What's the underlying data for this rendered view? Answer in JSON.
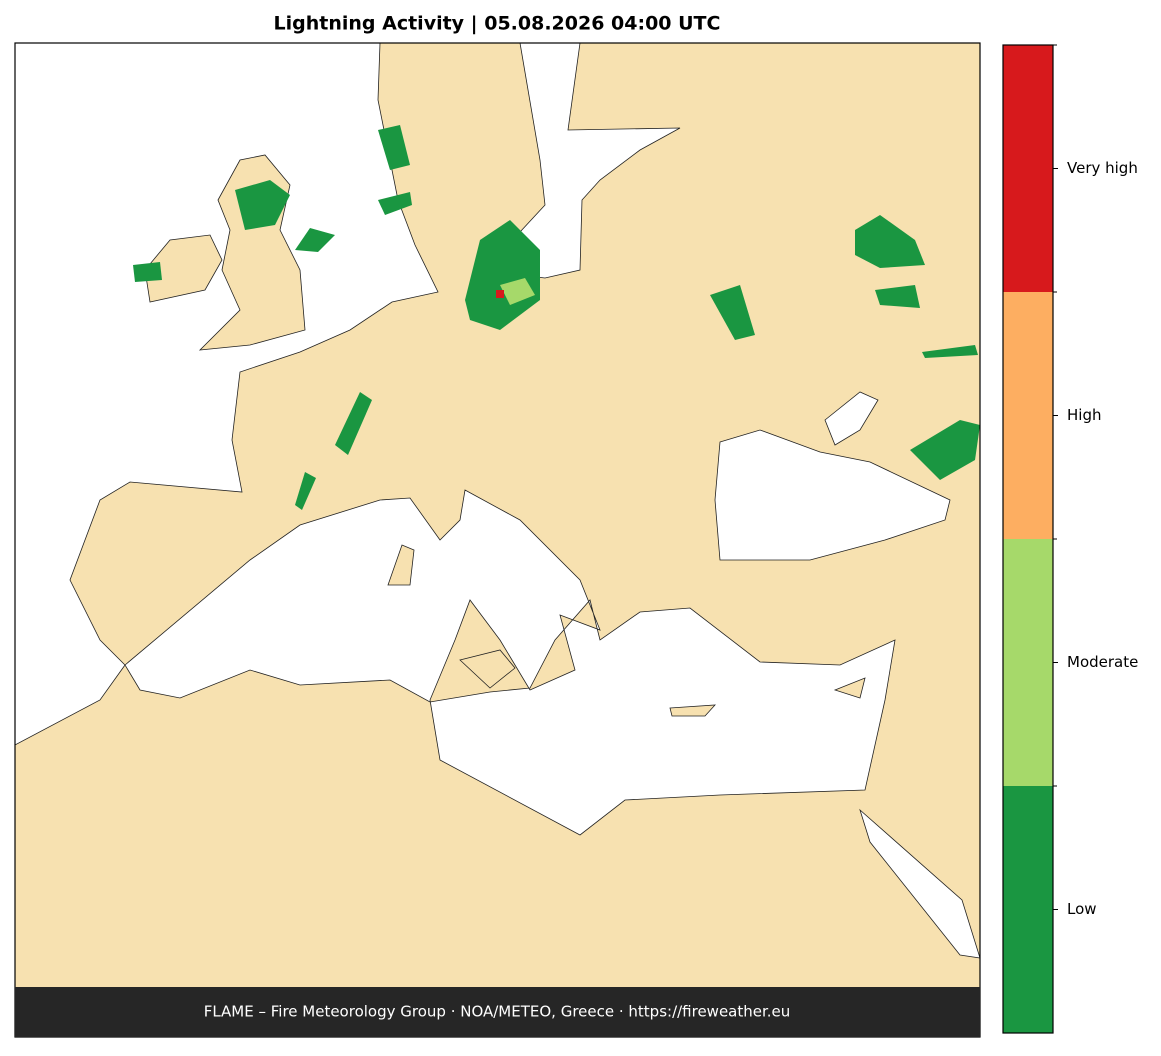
{
  "header": {
    "title": "Lightning Activity  |  05.08.2026 04:00 UTC"
  },
  "colorbar": {
    "levels": [
      {
        "label": "Very high",
        "color": "#d7191c"
      },
      {
        "label": "High",
        "color": "#fdae61"
      },
      {
        "label": "Moderate",
        "color": "#a6d96a"
      },
      {
        "label": "Low",
        "color": "#1a9641"
      }
    ]
  },
  "footer": {
    "text": "FLAME – Fire Meteorology Group · NOA/METEO, Greece · https://fireweather.eu"
  }
}
